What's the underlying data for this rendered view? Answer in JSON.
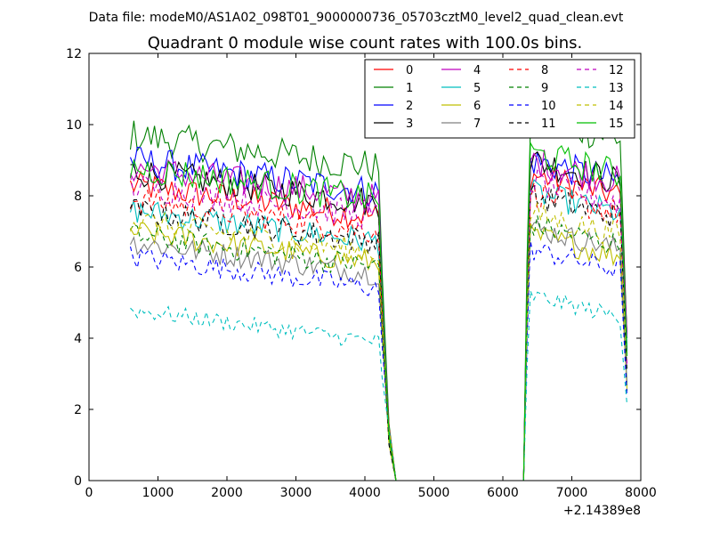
{
  "figure": {
    "suptitle": "Data file: modeM0/AS1A02_098T01_9000000736_05703cztM0_level2_quad_clean.evt",
    "title": "Quadrant 0 module wise count rates with 100.0s bins.",
    "offset_label": "+2.14389e8"
  },
  "chart_data": {
    "type": "line",
    "title": "Quadrant 0 module wise count rates with 100.0s bins.",
    "xlabel": "",
    "ylabel": "",
    "xlim": [
      0,
      8000
    ],
    "ylim": [
      0,
      12
    ],
    "x_offset": "+2.14389e8",
    "xticks": [
      0,
      1000,
      2000,
      3000,
      4000,
      5000,
      6000,
      7000,
      8000
    ],
    "yticks": [
      0,
      2,
      4,
      6,
      8,
      10,
      12
    ],
    "grid": false,
    "legend_position": "top-right",
    "legend_columns": 4,
    "x_segments": [
      {
        "start": 600,
        "end": 4400,
        "step": 100
      },
      {
        "start": 6300,
        "end": 7800,
        "step": 100
      }
    ],
    "series": [
      {
        "name": "0",
        "color": "#ff0000",
        "dash": "solid",
        "level": 8.3,
        "level2": 8.6
      },
      {
        "name": "1",
        "color": "#008000",
        "dash": "solid",
        "level": 9.7,
        "level2": 10.2
      },
      {
        "name": "2",
        "color": "#0000ff",
        "dash": "solid",
        "level": 9.0,
        "level2": 9.0
      },
      {
        "name": "3",
        "color": "#000000",
        "dash": "solid",
        "level": 8.7,
        "level2": 9.0
      },
      {
        "name": "4",
        "color": "#bf00bf",
        "dash": "solid",
        "level": 8.8,
        "level2": 9.0
      },
      {
        "name": "5",
        "color": "#00bfbf",
        "dash": "solid",
        "level": 7.6,
        "level2": 8.1
      },
      {
        "name": "6",
        "color": "#bfbf00",
        "dash": "solid",
        "level": 7.0,
        "level2": 6.9
      },
      {
        "name": "7",
        "color": "#808080",
        "dash": "solid",
        "level": 6.7,
        "level2": 7.1
      },
      {
        "name": "8",
        "color": "#ff0000",
        "dash": "dashed",
        "level": 7.9,
        "level2": 8.1
      },
      {
        "name": "9",
        "color": "#008000",
        "dash": "dashed",
        "level": 6.9,
        "level2": 7.2
      },
      {
        "name": "10",
        "color": "#0000ff",
        "dash": "dashed",
        "level": 6.3,
        "level2": 6.5
      },
      {
        "name": "11",
        "color": "#000000",
        "dash": "dashed",
        "level": 7.6,
        "level2": 8.0
      },
      {
        "name": "12",
        "color": "#bf00bf",
        "dash": "dashed",
        "level": 8.3,
        "level2": 8.4
      },
      {
        "name": "13",
        "color": "#00bfbf",
        "dash": "dashed",
        "level": 4.8,
        "level2": 5.2
      },
      {
        "name": "14",
        "color": "#bfbf00",
        "dash": "dashed",
        "level": 7.3,
        "level2": 7.5
      },
      {
        "name": "15",
        "color": "#00bf00",
        "dash": "solid",
        "level": 8.8,
        "level2": 9.2
      }
    ]
  }
}
